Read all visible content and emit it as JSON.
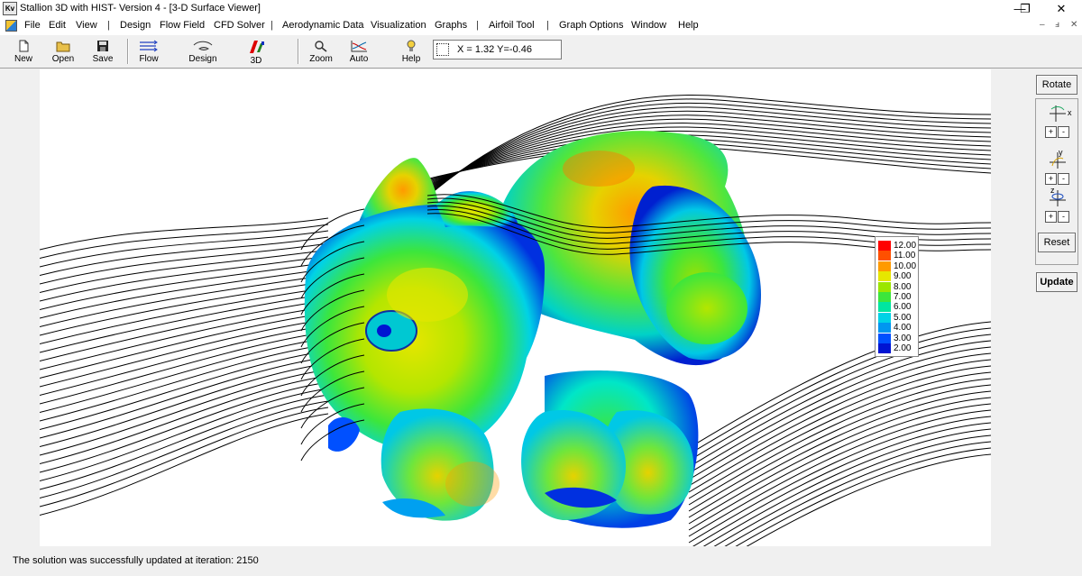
{
  "window": {
    "title": "Stallion 3D with HIST- Version 4 - [3-D Surface Viewer]",
    "minimize": "—",
    "restore": "❐",
    "close": "✕",
    "mdi_minimize": "–",
    "mdi_restore": "ⅎ",
    "mdi_close": "✕"
  },
  "menu": {
    "items": [
      "File",
      "Edit",
      "View",
      "Design",
      "Flow Field",
      "CFD Solver",
      "Aerodynamic Data",
      "Visualization",
      "Graphs",
      "Airfoil Tool",
      "Graph Options",
      "Window",
      "Help"
    ],
    "separator": "|"
  },
  "toolbar": {
    "new": "New",
    "open": "Open",
    "save": "Save",
    "flow": "Flow",
    "design": "Design",
    "three_d": "3D",
    "zoom": "Zoom",
    "auto": "Auto",
    "help": "Help",
    "coords": "X = 1.32  Y=-0.46"
  },
  "right_panel": {
    "rotate": "Rotate",
    "x_axis": "x",
    "y_axis": "y",
    "z_axis": "z",
    "plus": "+",
    "minus": "-",
    "reset": "Reset",
    "update": "Update"
  },
  "legend": {
    "labels": [
      "12.00",
      "11.00",
      "10.00",
      "9.00",
      "8.00",
      "7.00",
      "6.00",
      "5.00",
      "4.00",
      "3.00",
      "2.00"
    ],
    "colors": [
      "#ff0000",
      "#ff5000",
      "#ff9a00",
      "#e6e600",
      "#9be600",
      "#3ce63c",
      "#00e6a0",
      "#00d2e6",
      "#0096f0",
      "#0050ff",
      "#0014d2"
    ]
  },
  "status": {
    "message": "The solution was successfully updated at iteration: 2150"
  }
}
